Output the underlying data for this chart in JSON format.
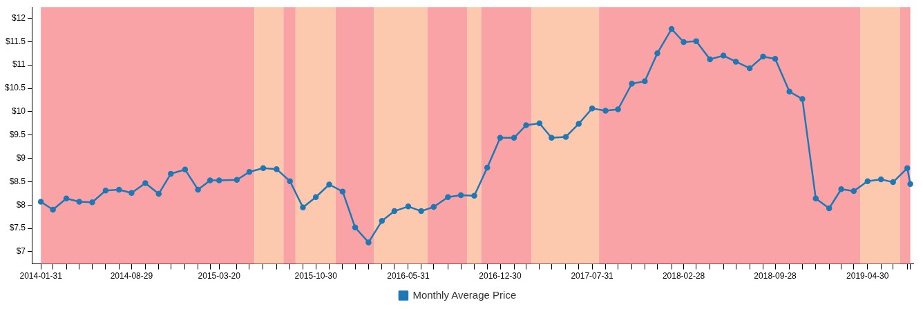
{
  "chart_data": {
    "type": "line",
    "x": [
      "2014-01-31",
      "2014-02-28",
      "2014-03-31",
      "2014-04-30",
      "2014-05-30",
      "2014-06-30",
      "2014-07-31",
      "2014-08-29",
      "2014-09-30",
      "2014-10-31",
      "2014-11-28",
      "2014-12-31",
      "2015-01-30",
      "2015-02-27",
      "2015-03-20",
      "2015-04-30",
      "2015-05-29",
      "2015-06-30",
      "2015-07-31",
      "2015-08-31",
      "2015-09-30",
      "2015-10-30",
      "2015-11-30",
      "2015-12-31",
      "2016-01-29",
      "2016-02-29",
      "2016-03-31",
      "2016-04-29",
      "2016-05-31",
      "2016-06-30",
      "2016-07-29",
      "2016-08-31",
      "2016-09-30",
      "2016-10-31",
      "2016-11-30",
      "2016-12-30",
      "2017-01-31",
      "2017-02-28",
      "2017-03-31",
      "2017-04-28",
      "2017-05-31",
      "2017-06-30",
      "2017-07-31",
      "2017-08-31",
      "2017-09-29",
      "2017-10-31",
      "2017-11-30",
      "2017-12-29",
      "2018-01-31",
      "2018-02-28",
      "2018-03-29",
      "2018-04-30",
      "2018-05-31",
      "2018-06-29",
      "2018-07-31",
      "2018-08-31",
      "2018-09-28",
      "2018-10-31",
      "2018-11-30",
      "2018-12-31",
      "2019-01-31",
      "2019-02-28",
      "2019-03-29",
      "2019-04-30",
      "2019-05-31",
      "2019-06-28",
      "2019-07-31",
      "2019-08-07"
    ],
    "series": [
      {
        "name": "Monthly Average Price",
        "color": "#1f77b4",
        "values": [
          8.07,
          7.9,
          8.14,
          8.07,
          8.06,
          8.31,
          8.33,
          8.26,
          8.47,
          8.24,
          8.67,
          8.76,
          8.33,
          8.53,
          8.53,
          8.54,
          8.71,
          8.79,
          8.77,
          8.51,
          7.95,
          8.17,
          8.44,
          8.29,
          7.52,
          7.2,
          7.66,
          7.87,
          7.97,
          7.87,
          7.96,
          8.17,
          8.21,
          8.2,
          8.8,
          9.44,
          9.44,
          9.71,
          9.75,
          9.44,
          9.46,
          9.74,
          10.07,
          10.02,
          10.05,
          10.6,
          10.65,
          11.25,
          11.77,
          11.49,
          11.51,
          11.12,
          11.2,
          11.07,
          10.93,
          11.18,
          11.13,
          10.43,
          10.27,
          8.14,
          7.93,
          8.34,
          8.3,
          8.51,
          8.55,
          8.49,
          8.79,
          8.45
        ]
      }
    ],
    "xlim": [
      "2014-01-10",
      "2019-08-14"
    ],
    "xticks": [
      "2014-01-31",
      {
        "value": "2014-02-28",
        "label": null
      },
      {
        "value": "2014-03-31",
        "label": null
      },
      {
        "value": "2014-04-30",
        "label": null
      },
      {
        "value": "2014-05-30",
        "label": null
      },
      {
        "value": "2014-06-30",
        "label": null
      },
      {
        "value": "2014-07-31",
        "label": null
      },
      "2014-08-29",
      {
        "value": "2014-09-30",
        "label": null
      },
      {
        "value": "2014-10-31",
        "label": null
      },
      {
        "value": "2014-11-28",
        "label": null
      },
      {
        "value": "2014-12-31",
        "label": null
      },
      {
        "value": "2015-01-30",
        "label": null
      },
      {
        "value": "2015-02-27",
        "label": null
      },
      "2015-03-20",
      {
        "value": "2015-04-30",
        "label": null
      },
      {
        "value": "2015-05-29",
        "label": null
      },
      {
        "value": "2015-06-30",
        "label": null
      },
      {
        "value": "2015-07-31",
        "label": null
      },
      {
        "value": "2015-08-31",
        "label": null
      },
      {
        "value": "2015-09-30",
        "label": null
      },
      "2015-10-30",
      {
        "value": "2015-11-30",
        "label": null
      },
      {
        "value": "2015-12-31",
        "label": null
      },
      {
        "value": "2016-01-29",
        "label": null
      },
      {
        "value": "2016-02-29",
        "label": null
      },
      {
        "value": "2016-03-31",
        "label": null
      },
      {
        "value": "2016-04-29",
        "label": null
      },
      "2016-05-31",
      {
        "value": "2016-06-30",
        "label": null
      },
      {
        "value": "2016-07-29",
        "label": null
      },
      {
        "value": "2016-08-31",
        "label": null
      },
      {
        "value": "2016-09-30",
        "label": null
      },
      {
        "value": "2016-10-31",
        "label": null
      },
      {
        "value": "2016-11-30",
        "label": null
      },
      "2016-12-30",
      {
        "value": "2017-01-31",
        "label": null
      },
      {
        "value": "2017-02-28",
        "label": null
      },
      {
        "value": "2017-03-31",
        "label": null
      },
      {
        "value": "2017-04-28",
        "label": null
      },
      {
        "value": "2017-05-31",
        "label": null
      },
      {
        "value": "2017-06-30",
        "label": null
      },
      "2017-07-31",
      {
        "value": "2017-08-31",
        "label": null
      },
      {
        "value": "2017-09-29",
        "label": null
      },
      {
        "value": "2017-10-31",
        "label": null
      },
      {
        "value": "2017-11-30",
        "label": null
      },
      {
        "value": "2017-12-29",
        "label": null
      },
      {
        "value": "2018-01-31",
        "label": null
      },
      "2018-02-28",
      {
        "value": "2018-03-29",
        "label": null
      },
      {
        "value": "2018-04-30",
        "label": null
      },
      {
        "value": "2018-05-31",
        "label": null
      },
      {
        "value": "2018-06-29",
        "label": null
      },
      {
        "value": "2018-07-31",
        "label": null
      },
      {
        "value": "2018-08-31",
        "label": null
      },
      "2018-09-28",
      {
        "value": "2018-10-31",
        "label": null
      },
      {
        "value": "2018-11-30",
        "label": null
      },
      {
        "value": "2018-12-31",
        "label": null
      },
      {
        "value": "2019-01-31",
        "label": null
      },
      {
        "value": "2019-02-28",
        "label": null
      },
      {
        "value": "2019-03-29",
        "label": null
      },
      "2019-04-30",
      {
        "value": "2019-05-31",
        "label": null
      },
      {
        "value": "2019-06-28",
        "label": null
      },
      {
        "value": "2019-07-31",
        "label": null
      },
      {
        "value": "2019-08-07",
        "label": null
      }
    ],
    "ylim": [
      6.74,
      12.24
    ],
    "yticks": [
      {
        "value": 7,
        "label": "$7"
      },
      {
        "value": 7.5,
        "label": "$7.5"
      },
      {
        "value": 8,
        "label": "$8"
      },
      {
        "value": 8.5,
        "label": "$8.5"
      },
      {
        "value": 9,
        "label": "$9"
      },
      {
        "value": 9.5,
        "label": "$9.5"
      },
      {
        "value": 10,
        "label": "$10"
      },
      {
        "value": 10.5,
        "label": "$10.5"
      },
      {
        "value": 11,
        "label": "$11"
      },
      {
        "value": 11.5,
        "label": "$11.5"
      },
      {
        "value": 12,
        "label": "$12"
      }
    ],
    "bands": [
      {
        "axis": "x",
        "from": "2014-01-31",
        "to": "2015-06-10",
        "color": "#f9a3a6"
      },
      {
        "axis": "x",
        "from": "2015-06-10",
        "to": "2015-08-16",
        "color": "#fcc9ae"
      },
      {
        "axis": "x",
        "from": "2015-08-16",
        "to": "2015-09-13",
        "color": "#f9a3a6"
      },
      {
        "axis": "x",
        "from": "2015-09-13",
        "to": "2015-12-15",
        "color": "#fcc9ae"
      },
      {
        "axis": "x",
        "from": "2015-12-15",
        "to": "2016-03-13",
        "color": "#f9a3a6"
      },
      {
        "axis": "x",
        "from": "2016-03-13",
        "to": "2016-07-15",
        "color": "#fcc9ae"
      },
      {
        "axis": "x",
        "from": "2016-07-15",
        "to": "2016-10-15",
        "color": "#f9a3a6"
      },
      {
        "axis": "x",
        "from": "2016-10-15",
        "to": "2016-11-16",
        "color": "#fcc9ae"
      },
      {
        "axis": "x",
        "from": "2016-11-16",
        "to": "2017-03-13",
        "color": "#f9a3a6"
      },
      {
        "axis": "x",
        "from": "2017-03-13",
        "to": "2017-08-16",
        "color": "#fcc9ae"
      },
      {
        "axis": "x",
        "from": "2017-08-16",
        "to": "2019-04-13",
        "color": "#f9a3a6"
      },
      {
        "axis": "x",
        "from": "2019-04-13",
        "to": "2019-07-14",
        "color": "#fcc9ae"
      },
      {
        "axis": "x",
        "from": "2019-07-14",
        "to": "2019-08-07",
        "color": "#f9a3a6"
      }
    ],
    "legend": "bottom",
    "grid": false,
    "marker": "circle",
    "line_style": "solid"
  }
}
